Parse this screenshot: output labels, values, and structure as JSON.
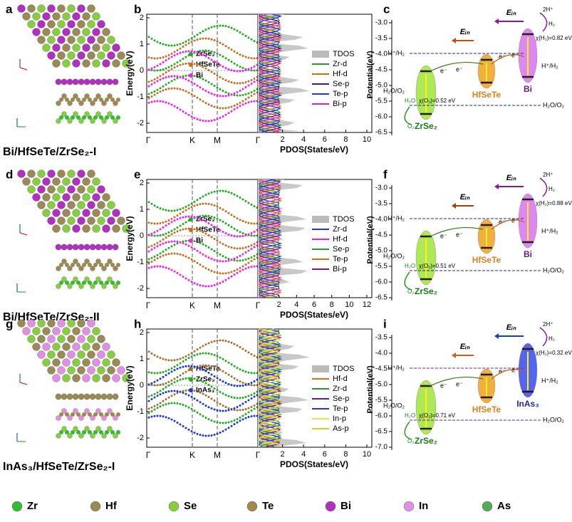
{
  "panels": [
    {
      "struct_label": "a",
      "band_label": "b",
      "pot_label": "c",
      "caption": "Bi/HfSeTe/ZrSe₂-I",
      "band": {
        "ylabel": "Energy(eV)",
        "yticks": [
          "2",
          "1",
          "0",
          "-1",
          "-2"
        ],
        "kpoints": [
          "Γ",
          "K",
          "M",
          "Γ"
        ],
        "legend": [
          {
            "name": "ZrSe₂",
            "color": "#22aa22"
          },
          {
            "name": "HfSeTe",
            "color": "#c07020"
          },
          {
            "name": "Bi",
            "color": "#ee22ee"
          }
        ]
      },
      "pdos": {
        "xlabel": "PDOS(States/eV)",
        "xticks": [
          "2",
          "4",
          "6",
          "8",
          "10"
        ],
        "legend": [
          {
            "name": "TDOS",
            "color": "#bbbbbb"
          },
          {
            "name": "Zr-d",
            "color": "#2a9a2a"
          },
          {
            "name": "Hf-d",
            "color": "#d07010"
          },
          {
            "name": "Se-p",
            "color": "#3a1a9a"
          },
          {
            "name": "Te-p",
            "color": "#1a3aee"
          },
          {
            "name": "Bi-p",
            "color": "#ee2288"
          }
        ]
      },
      "potential": {
        "ylabel": "Potential(eV)",
        "yticks": [
          "-3.0",
          "-3.5",
          "-4.0",
          "-4.5",
          "-5.0",
          "-5.5",
          "-6.0",
          "-6.5"
        ],
        "fields": [
          {
            "text": "Eᵢₙ",
            "color": "#c05010"
          },
          {
            "text": "Eᵢₙ",
            "color": "#8a1a9a"
          }
        ],
        "materials": [
          {
            "name": "ZrSe₂",
            "color": "#aee855"
          },
          {
            "name": "HfSeTe",
            "color": "#f0b040"
          },
          {
            "name": "Bi",
            "color": "#dd88ee"
          }
        ],
        "h_level": "H⁺/H₂",
        "h_level_right": "H⁺/H₂",
        "o_level": "H₂O/O₂",
        "o_level_left": "H₂O/O₂",
        "chi_o": "χ(O₂)=0.52 eV",
        "chi_h": "χ(H₂)=0.82 eV",
        "h2o": "H₂O",
        "o2": "O₂",
        "two_h": "2H⁺",
        "h2": "H₂",
        "electron": "e⁻",
        "level_color": "#1a2aa0"
      }
    },
    {
      "struct_label": "d",
      "band_label": "e",
      "pot_label": "f",
      "caption": "Bi/HfSeTe/ZrSe₂-II",
      "band": {
        "ylabel": "Energy(eV)",
        "yticks": [
          "2",
          "1",
          "0",
          "-1",
          "-2"
        ],
        "kpoints": [
          "Γ",
          "K",
          "M",
          "Γ"
        ],
        "legend": [
          {
            "name": "ZrSe₂",
            "color": "#22aa22"
          },
          {
            "name": "HfSeTe",
            "color": "#c07020"
          },
          {
            "name": "Bi",
            "color": "#ee22ee"
          }
        ]
      },
      "pdos": {
        "xlabel": "PDOS(States/eV)",
        "xticks": [
          "2",
          "4",
          "6",
          "8",
          "10",
          "12"
        ],
        "legend": [
          {
            "name": "TDOS",
            "color": "#bbbbbb"
          },
          {
            "name": "Zr-d",
            "color": "#1a3aee"
          },
          {
            "name": "Hf-d",
            "color": "#ee22cc"
          },
          {
            "name": "Se-p",
            "color": "#2a9a2a"
          },
          {
            "name": "Te-p",
            "color": "#d07010"
          },
          {
            "name": "Bi-p",
            "color": "#6a1a9a"
          }
        ]
      },
      "potential": {
        "ylabel": "Potential(eV)",
        "yticks": [
          "-3.0",
          "-3.5",
          "-4.0",
          "-4.5",
          "-5.0",
          "-5.5",
          "-6.0",
          "-6.5"
        ],
        "fields": [
          {
            "text": "Eᵢₙ",
            "color": "#a04010"
          },
          {
            "text": "Eᵢₙ",
            "color": "#8a1a9a"
          }
        ],
        "materials": [
          {
            "name": "ZrSe₂",
            "color": "#aee855"
          },
          {
            "name": "HfSeTe",
            "color": "#f0b040"
          },
          {
            "name": "Bi",
            "color": "#dd88ee"
          }
        ],
        "h_level": "H⁺/H₂",
        "h_level_right": "H⁺/H₂",
        "o_level": "H₂O/O₂",
        "o_level_left": "H₂O/O₂",
        "chi_o": "χ(O₂)=0.51 eV",
        "chi_h": "χ(H₂)=0.88 eV",
        "h2o": "H₂O",
        "o2": "O₂",
        "two_h": "2H⁺",
        "h2": "H₂",
        "electron": "e⁻",
        "level_color": "#1a2aa0"
      }
    },
    {
      "struct_label": "g",
      "band_label": "h",
      "pot_label": "i",
      "caption": "InAs₃/HfSeTe/ZrSe₂-I",
      "band": {
        "ylabel": "Energy(eV)",
        "yticks": [
          "2",
          "1",
          "0",
          "-1",
          "-2"
        ],
        "kpoints": [
          "Γ",
          "K",
          "M",
          "Γ"
        ],
        "legend": [
          {
            "name": "HfSeTe",
            "color": "#a07030"
          },
          {
            "name": "ZrSe₂",
            "color": "#22aa22"
          },
          {
            "name": "InAs₃",
            "color": "#1a3acc"
          }
        ]
      },
      "pdos": {
        "xlabel": "PDOS(States/eV)",
        "xticks": [
          "2",
          "4",
          "6",
          "8",
          "10"
        ],
        "legend": [
          {
            "name": "TDOS",
            "color": "#bbbbbb"
          },
          {
            "name": "Hf-d",
            "color": "#d07010"
          },
          {
            "name": "Zr-d",
            "color": "#2a9a2a"
          },
          {
            "name": "Se-p",
            "color": "#6a1a9a"
          },
          {
            "name": "Te-p",
            "color": "#1a3aee"
          },
          {
            "name": "In-p",
            "color": "#eedd44"
          },
          {
            "name": "As-p",
            "color": "#bbdd22"
          }
        ]
      },
      "potential": {
        "ylabel": "Potential(eV)",
        "yticks": [
          "-3.5",
          "-4.0",
          "-4.5",
          "-5.0",
          "-5.5",
          "-6.0",
          "-6.5",
          "-7.0"
        ],
        "fields": [
          {
            "text": "Eᵢₙ",
            "color": "#d06010"
          },
          {
            "text": "Eᵢₙ",
            "color": "#1a3acc"
          }
        ],
        "materials": [
          {
            "name": "ZrSe₂",
            "color": "#aee855"
          },
          {
            "name": "HfSeTe",
            "color": "#f0b040"
          },
          {
            "name": "InAs₃",
            "color": "#5566ee"
          }
        ],
        "h_level": "H⁺/H₂",
        "h_level_right": "H⁺/H₂",
        "o_level": "H₂O/O₂",
        "o_level_left": "H₂O/O₂",
        "chi_o": "χ(O₂)=0.71 eV",
        "chi_h": "χ(H₂)=0.32 eV",
        "h2o": "H₂O",
        "o2": "O₂",
        "two_h": "2H⁺",
        "h2": "H₂",
        "electron": "e⁻",
        "level_color": "#7a1a9a"
      }
    }
  ],
  "atom_legend": [
    {
      "name": "Zr",
      "color": "#33bb33"
    },
    {
      "name": "Hf",
      "color": "#9a8a55"
    },
    {
      "name": "Se",
      "color": "#88cc44"
    },
    {
      "name": "Te",
      "color": "#a08850"
    },
    {
      "name": "Bi",
      "color": "#b030c0"
    },
    {
      "name": "In",
      "color": "#e090e0"
    },
    {
      "name": "As",
      "color": "#55aa55"
    }
  ]
}
